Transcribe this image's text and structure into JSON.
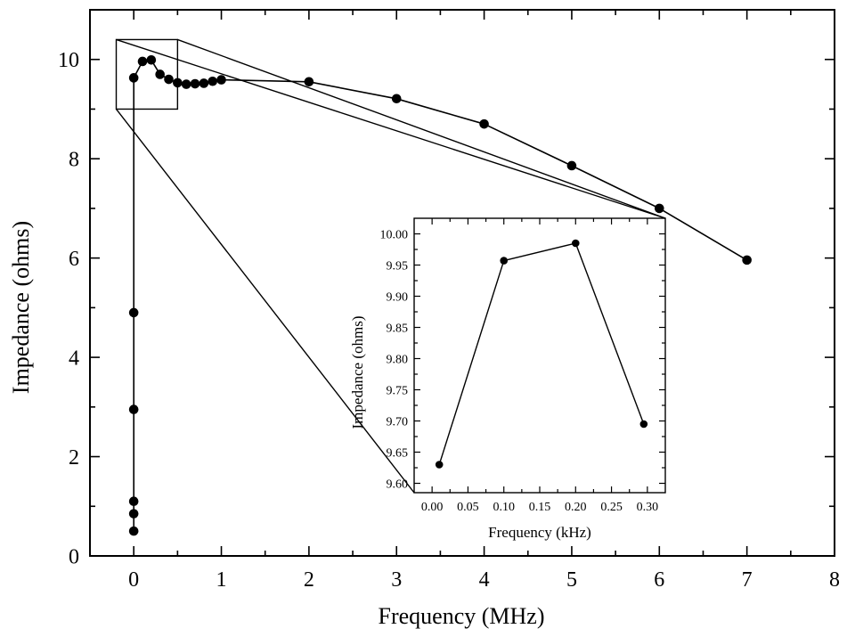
{
  "chart_data": [
    {
      "type": "line",
      "title": "",
      "xlabel": "Frequency (MHz)",
      "ylabel": "Impedance (ohms)",
      "xlim": [
        -0.5,
        8
      ],
      "ylim": [
        0,
        11
      ],
      "xticks": [
        0,
        1,
        2,
        3,
        4,
        5,
        6,
        7,
        8
      ],
      "yticks": [
        0,
        2,
        4,
        6,
        8,
        10
      ],
      "xtick_labels": [
        "0",
        "1",
        "2",
        "3",
        "4",
        "5",
        "6",
        "7",
        "8"
      ],
      "ytick_labels": [
        "0",
        "2",
        "4",
        "6",
        "8",
        "10"
      ],
      "grid": false,
      "legend": "none",
      "marker": "filled-circle",
      "series": [
        {
          "points": [
            [
              0,
              0.5
            ],
            [
              0,
              0.85
            ],
            [
              0,
              1.1
            ],
            [
              0,
              2.95
            ],
            [
              0,
              4.9
            ],
            [
              0,
              9.63
            ],
            [
              0.1,
              9.96
            ],
            [
              0.2,
              9.99
            ],
            [
              0.3,
              9.7
            ],
            [
              0.4,
              9.6
            ],
            [
              0.5,
              9.53
            ],
            [
              0.6,
              9.5
            ],
            [
              0.7,
              9.51
            ],
            [
              0.8,
              9.52
            ],
            [
              0.9,
              9.56
            ],
            [
              1.0,
              9.59
            ],
            [
              2,
              9.55
            ],
            [
              3,
              9.21
            ],
            [
              4,
              8.7
            ],
            [
              5,
              7.86
            ],
            [
              6,
              7.0
            ],
            [
              7,
              5.96
            ]
          ]
        }
      ],
      "zoom_box": {
        "x": [
          -0.2,
          0.5
        ],
        "y": [
          9.0,
          10.4
        ]
      }
    },
    {
      "type": "line",
      "title": "",
      "xlabel": "Frequency (kHz)",
      "ylabel": "Impedance (ohms)",
      "xlim": [
        -0.025,
        0.325
      ],
      "ylim": [
        9.585,
        10.025
      ],
      "xticks": [
        0.0,
        0.05,
        0.1,
        0.15,
        0.2,
        0.25,
        0.3
      ],
      "yticks": [
        9.6,
        9.65,
        9.7,
        9.75,
        9.8,
        9.85,
        9.9,
        9.95,
        10.0
      ],
      "xtick_labels": [
        "0.00",
        "0.05",
        "0.10",
        "0.15",
        "0.20",
        "0.25",
        "0.30"
      ],
      "ytick_labels": [
        "9.60",
        "9.65",
        "9.70",
        "9.75",
        "9.80",
        "9.85",
        "9.90",
        "9.95",
        "10.00"
      ],
      "grid": false,
      "legend": "none",
      "placement": "inset-lower-right",
      "marker": "filled-circle",
      "series": [
        {
          "points": [
            [
              0.01,
              9.63
            ],
            [
              0.1,
              9.957
            ],
            [
              0.2,
              9.985
            ],
            [
              0.295,
              9.695
            ]
          ]
        }
      ]
    }
  ]
}
